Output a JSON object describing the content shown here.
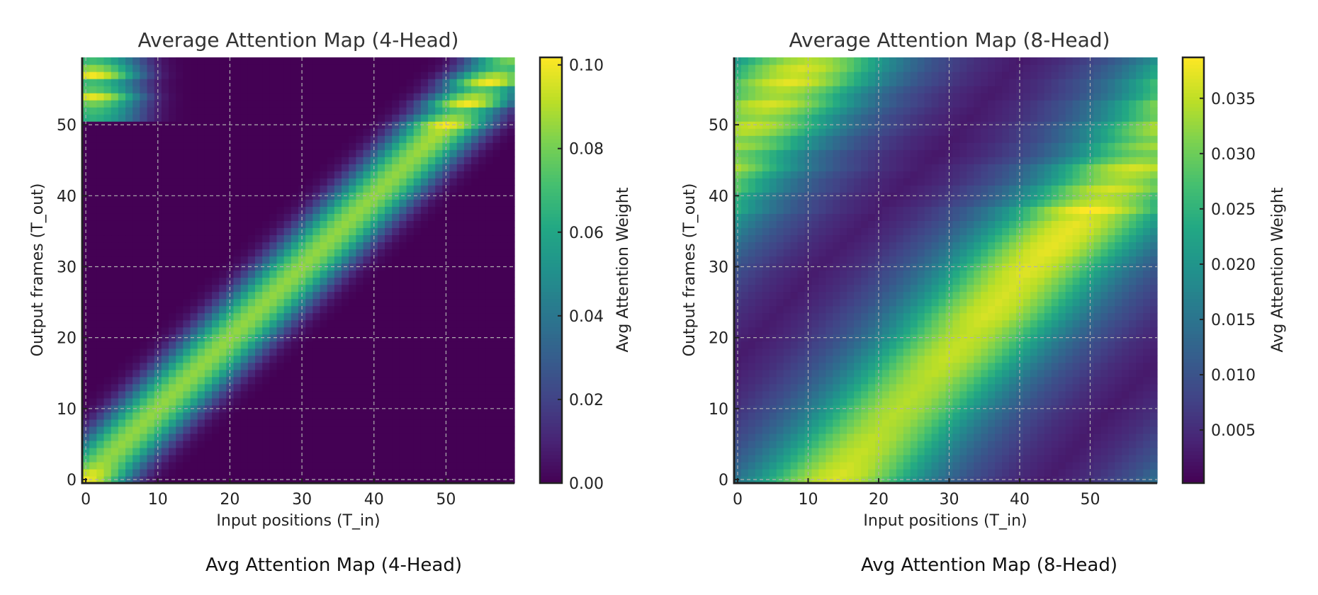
{
  "chart_data": [
    {
      "type": "heatmap",
      "title": "Average Attention Map (4-Head)",
      "caption": "Avg Attention Map (4-Head)",
      "xlabel": "Input positions (T_in)",
      "ylabel": "Output frames (T_out)",
      "colorbar_label": "Avg Attention Weight",
      "colormap": "viridis",
      "grid": true,
      "shape": [
        60,
        60
      ],
      "xlim": [
        -0.5,
        59.5
      ],
      "ylim": [
        -0.5,
        59.5
      ],
      "x_ticks": [
        0,
        10,
        20,
        30,
        40,
        50
      ],
      "y_ticks": [
        0,
        10,
        20,
        30,
        40,
        50
      ],
      "colorbar_range": [
        0.0,
        0.1018
      ],
      "colorbar_ticks": [
        "0.00",
        "0.02",
        "0.04",
        "0.06",
        "0.08",
        "0.10"
      ],
      "ridge": [
        [
          0,
          0,
          0
        ],
        [
          59,
          59,
          0
        ]
      ],
      "row_peak": [
        0.1,
        0.095,
        0.088,
        0.085,
        0.085,
        0.085,
        0.085,
        0.085,
        0.085,
        0.085,
        0.085,
        0.085,
        0.085,
        0.085,
        0.085,
        0.085,
        0.085,
        0.085,
        0.085,
        0.085,
        0.085,
        0.085,
        0.085,
        0.085,
        0.085,
        0.085,
        0.085,
        0.085,
        0.085,
        0.085,
        0.085,
        0.085,
        0.085,
        0.085,
        0.085,
        0.085,
        0.085,
        0.085,
        0.085,
        0.085,
        0.085,
        0.085,
        0.085,
        0.085,
        0.085,
        0.085,
        0.086,
        0.087,
        0.088,
        0.09,
        0.1,
        0.085,
        0.075,
        0.1,
        0.088,
        0.075,
        0.1,
        0.088,
        0.072,
        0.08
      ],
      "wrap_col": 1,
      "wrap_rows": [
        51,
        59
      ],
      "wrap_peak": [
        0.065,
        0.07,
        0.08,
        0.098,
        0.075,
        0.07,
        0.1,
        0.085,
        0.07
      ],
      "profile": {
        "offset": [
          0,
          1,
          2,
          3,
          4,
          5,
          6,
          7,
          8,
          9,
          10,
          11,
          12
        ],
        "fraction": [
          1,
          0.97,
          0.9,
          0.8,
          0.67,
          0.52,
          0.37,
          0.24,
          0.14,
          0.07,
          0.03,
          0.01,
          0
        ]
      },
      "floor": 0.0
    },
    {
      "type": "heatmap",
      "title": "Average Attention Map (8-Head)",
      "caption": "Avg Attention Map (8-Head)",
      "xlabel": "Input positions (T_in)",
      "ylabel": "Output frames (T_out)",
      "colorbar_label": "Avg Attention Weight",
      "colormap": "viridis",
      "grid": true,
      "shape": [
        60,
        60
      ],
      "xlim": [
        -0.5,
        59.5
      ],
      "ylim": [
        -0.5,
        59.5
      ],
      "x_ticks": [
        0,
        10,
        20,
        30,
        40,
        50
      ],
      "y_ticks": [
        0,
        10,
        20,
        30,
        40,
        50
      ],
      "colorbar_range": [
        0.0002,
        0.0387
      ],
      "colorbar_ticks": [
        "0.005",
        "0.010",
        "0.015",
        "0.020",
        "0.025",
        "0.030",
        "0.035"
      ],
      "ridge": [
        [
          0,
          14,
          0
        ],
        [
          10,
          23,
          0
        ],
        [
          20,
          32.5,
          0
        ],
        [
          30,
          41.5,
          0
        ],
        [
          38,
          50,
          0
        ],
        [
          47,
          59.5,
          0
        ],
        [
          59,
          70,
          0
        ]
      ],
      "row_peak": [
        0.036,
        0.036,
        0.0355,
        0.035,
        0.035,
        0.0345,
        0.0345,
        0.034,
        0.034,
        0.034,
        0.034,
        0.034,
        0.034,
        0.034,
        0.034,
        0.0345,
        0.0345,
        0.035,
        0.035,
        0.035,
        0.035,
        0.035,
        0.0355,
        0.036,
        0.036,
        0.036,
        0.036,
        0.036,
        0.036,
        0.0365,
        0.0365,
        0.0365,
        0.037,
        0.037,
        0.037,
        0.037,
        0.037,
        0.036,
        0.0387,
        0.035,
        0.034,
        0.036,
        0.033,
        0.034,
        0.036,
        0.032,
        0.03,
        0.033,
        0.031,
        0.034,
        0.035,
        0.032,
        0.034,
        0.036,
        0.033,
        0.034,
        0.037,
        0.035,
        0.036,
        0.034
      ],
      "profile": {
        "offset": [
          0,
          3,
          6,
          9,
          12,
          15,
          18,
          21,
          24,
          27,
          30,
          40
        ],
        "fraction": [
          1,
          0.95,
          0.83,
          0.66,
          0.5,
          0.37,
          0.27,
          0.2,
          0.14,
          0.1,
          0.07,
          0.02
        ]
      },
      "floor": 0.0005
    }
  ]
}
